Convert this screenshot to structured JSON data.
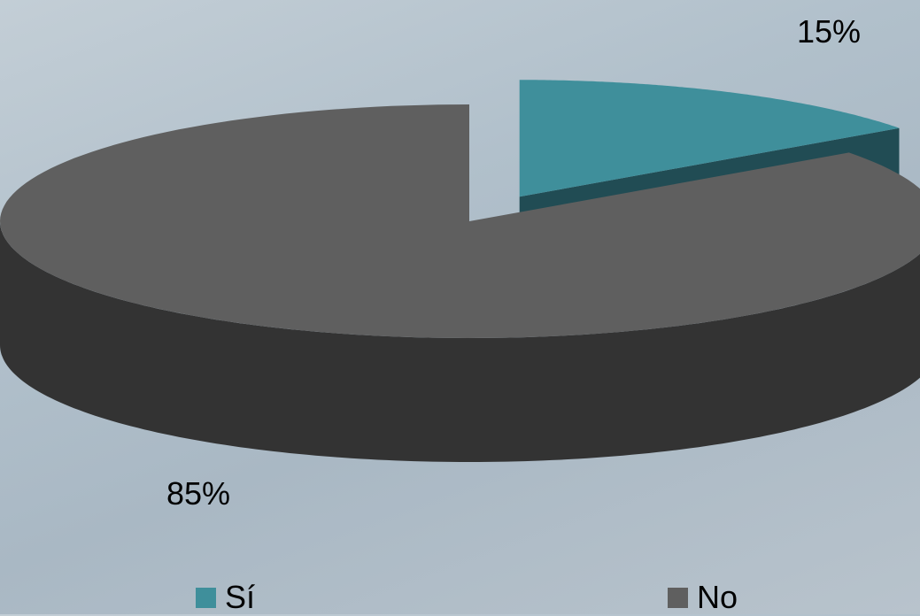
{
  "chart_data": {
    "type": "pie",
    "categories": [
      "Sí",
      "No"
    ],
    "values": [
      15,
      85
    ],
    "labels": [
      "15%",
      "85%"
    ],
    "colors": {
      "Sí": "#3f8f9b",
      "No": "#5f5f5f"
    },
    "side_colors": {
      "Sí": "#214c54",
      "No": "#333333"
    },
    "legend_position": "bottom"
  }
}
